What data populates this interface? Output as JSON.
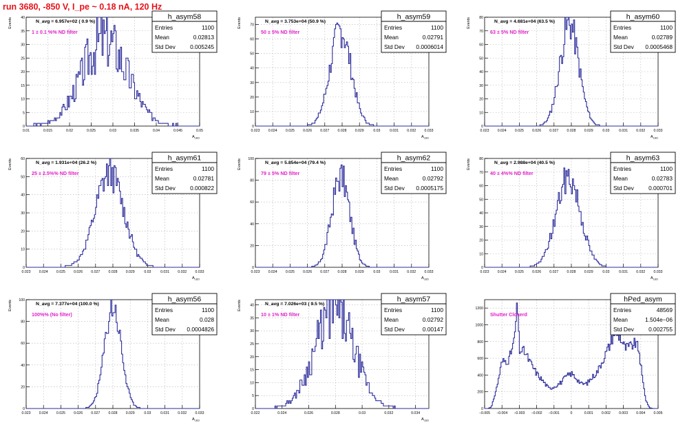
{
  "canvas_title": "run 3680,  -850 V, I_pe ~ 0.18 nA, 120 Hz",
  "colors": {
    "hist_line": "#2b2b9a",
    "annotation": "#e020c8",
    "title": "#e8121a",
    "grid": "#b0b0b0"
  },
  "stats_labels": {
    "entries": "Entries",
    "mean": "Mean",
    "std": "Std Dev"
  },
  "chart_data": [
    {
      "type": "histogram",
      "name": "h_asym58",
      "ylabel": "Events",
      "xlabel": "A",
      "xlabel_sub": "LED",
      "navg": "N_avg = 6.957e+02 ( 0.9 %)",
      "filter": "1 ± 0.1 %% ND filter",
      "entries": "1100",
      "mean": "0.02813",
      "std": "0.005245",
      "xlim": [
        0.01,
        0.05
      ],
      "ylim": [
        0,
        40
      ],
      "xticks": [
        0.01,
        0.015,
        0.02,
        0.025,
        0.03,
        0.035,
        0.04,
        0.045,
        0.05
      ],
      "xtick_labels": [
        "0.01",
        "0.015",
        "0.02",
        "0.025",
        "0.03",
        "0.035",
        "0.04",
        "0.045",
        "0.05"
      ],
      "yticks": [
        0,
        5,
        10,
        15,
        20,
        25,
        30,
        35,
        40
      ],
      "grid": true,
      "shape": {
        "mu": 0.02813,
        "sigma": 0.005245,
        "peak": 32,
        "bins": 160,
        "noise": 0.35,
        "seed": 3
      }
    },
    {
      "type": "histogram",
      "name": "h_asym59",
      "ylabel": "Events",
      "xlabel": "A",
      "xlabel_sub": "LED",
      "navg": "N_avg = 3.753e+04 (50.9 %)",
      "filter": "50 ± 5% ND filter",
      "entries": "1100",
      "mean": "0.02791",
      "std": "0.0006014",
      "xlim": [
        0.023,
        0.033
      ],
      "ylim": [
        0,
        75
      ],
      "xticks": [
        0.023,
        0.024,
        0.025,
        0.026,
        0.027,
        0.028,
        0.029,
        0.03,
        0.031,
        0.032,
        0.033
      ],
      "xtick_labels": [
        "0.023",
        "0.024",
        "0.025",
        "0.026",
        "0.027",
        "0.028",
        "0.029",
        "0.03",
        "0.031",
        "0.032",
        "0.033"
      ],
      "yticks": [
        0,
        10,
        20,
        30,
        40,
        50,
        60,
        70
      ],
      "grid": true,
      "shape": {
        "mu": 0.02791,
        "sigma": 0.0006014,
        "peak": 66,
        "bins": 160,
        "noise": 0.18,
        "seed": 7
      }
    },
    {
      "type": "histogram",
      "name": "h_asym60",
      "ylabel": "Events",
      "xlabel": "A",
      "xlabel_sub": "LED",
      "navg": "N_avg = 4.681e+04 (63.5 %)",
      "filter": "63 ± 5% ND filter",
      "entries": "1100",
      "mean": "0.02789",
      "std": "0.0005468",
      "xlim": [
        0.023,
        0.033
      ],
      "ylim": [
        0,
        80
      ],
      "xticks": [
        0.023,
        0.024,
        0.025,
        0.026,
        0.027,
        0.028,
        0.029,
        0.03,
        0.031,
        0.032,
        0.033
      ],
      "xtick_labels": [
        "0.023",
        "0.024",
        "0.025",
        "0.026",
        "0.027",
        "0.028",
        "0.029",
        "0.03",
        "0.031",
        "0.032",
        "0.033"
      ],
      "yticks": [
        0,
        10,
        20,
        30,
        40,
        50,
        60,
        70,
        80
      ],
      "grid": true,
      "shape": {
        "mu": 0.02789,
        "sigma": 0.0005468,
        "peak": 75,
        "bins": 160,
        "noise": 0.18,
        "seed": 11
      }
    },
    {
      "type": "histogram",
      "name": "h_asym61",
      "ylabel": "Events",
      "xlabel": "A",
      "xlabel_sub": "LED",
      "navg": "N_avg = 1.931e+04 (26.2 %)",
      "filter": "25 ± 2.5%% ND filter",
      "entries": "1100",
      "mean": "0.02781",
      "std": "0.000822",
      "xlim": [
        0.023,
        0.033
      ],
      "ylim": [
        0,
        60
      ],
      "xticks": [
        0.023,
        0.024,
        0.025,
        0.026,
        0.027,
        0.028,
        0.029,
        0.03,
        0.031,
        0.032,
        0.033
      ],
      "xtick_labels": [
        "0.023",
        "0.024",
        "0.025",
        "0.026",
        "0.027",
        "0.028",
        "0.029",
        "0.03",
        "0.031",
        "0.032",
        "0.033"
      ],
      "yticks": [
        0,
        10,
        20,
        30,
        40,
        50,
        60
      ],
      "grid": true,
      "shape": {
        "mu": 0.02781,
        "sigma": 0.000822,
        "peak": 52,
        "bins": 160,
        "noise": 0.18,
        "seed": 13
      }
    },
    {
      "type": "histogram",
      "name": "h_asym62",
      "ylabel": "Events",
      "xlabel": "A",
      "xlabel_sub": "LED",
      "navg": "N_avg = 5.854e+04 (79.4 %)",
      "filter": "79 ± 5% ND filter",
      "entries": "1100",
      "mean": "0.02792",
      "std": "0.0005175",
      "xlim": [
        0.023,
        0.033
      ],
      "ylim": [
        0,
        100
      ],
      "xticks": [
        0.023,
        0.024,
        0.025,
        0.026,
        0.027,
        0.028,
        0.029,
        0.03,
        0.031,
        0.032,
        0.033
      ],
      "xtick_labels": [
        "0.023",
        "0.024",
        "0.025",
        "0.026",
        "0.027",
        "0.028",
        "0.029",
        "0.03",
        "0.031",
        "0.032",
        "0.033"
      ],
      "yticks": [
        0,
        20,
        40,
        60,
        80,
        100
      ],
      "grid": true,
      "shape": {
        "mu": 0.02792,
        "sigma": 0.0005175,
        "peak": 84,
        "bins": 160,
        "noise": 0.18,
        "seed": 17
      }
    },
    {
      "type": "histogram",
      "name": "h_asym63",
      "ylabel": "Events",
      "xlabel": "A",
      "xlabel_sub": "LED",
      "navg": "N_avg = 2.988e+04 (40.5 %)",
      "filter": "40 ± 4%% ND filter",
      "entries": "1100",
      "mean": "0.02783",
      "std": "0.000701",
      "xlim": [
        0.023,
        0.033
      ],
      "ylim": [
        0,
        80
      ],
      "xticks": [
        0.023,
        0.024,
        0.025,
        0.026,
        0.027,
        0.028,
        0.029,
        0.03,
        0.031,
        0.032,
        0.033
      ],
      "xtick_labels": [
        "0.023",
        "0.024",
        "0.025",
        "0.026",
        "0.027",
        "0.028",
        "0.029",
        "0.03",
        "0.031",
        "0.032",
        "0.033"
      ],
      "yticks": [
        0,
        10,
        20,
        30,
        40,
        50,
        60,
        70,
        80
      ],
      "grid": true,
      "shape": {
        "mu": 0.02783,
        "sigma": 0.000701,
        "peak": 66,
        "bins": 160,
        "noise": 0.18,
        "seed": 19
      }
    },
    {
      "type": "histogram",
      "name": "h_asym56",
      "ylabel": "Events",
      "xlabel": "A",
      "xlabel_sub": "LED",
      "navg": "N_avg = 7.377e+04 (100.0 %)",
      "filter": "100%% (No filter)",
      "entries": "1100",
      "mean": "0.028",
      "std": "0.0004826",
      "xlim": [
        0.023,
        0.033
      ],
      "ylim": [
        0,
        100
      ],
      "xticks": [
        0.023,
        0.024,
        0.025,
        0.026,
        0.027,
        0.028,
        0.029,
        0.03,
        0.031,
        0.032,
        0.033
      ],
      "xtick_labels": [
        "0.023",
        "0.024",
        "0.025",
        "0.026",
        "0.027",
        "0.028",
        "0.029",
        "0.03",
        "0.031",
        "0.032",
        "0.033"
      ],
      "yticks": [
        0,
        20,
        40,
        60,
        80,
        100
      ],
      "grid": true,
      "shape": {
        "mu": 0.028,
        "sigma": 0.0004826,
        "peak": 93,
        "bins": 160,
        "noise": 0.15,
        "seed": 23
      }
    },
    {
      "type": "histogram",
      "name": "h_asym57",
      "ylabel": "Events",
      "xlabel": "A",
      "xlabel_sub": "LED",
      "navg": "N_avg = 7.026e+03 ( 9.5 %)",
      "filter": "10 ± 1% ND filter",
      "entries": "1100",
      "mean": "0.02792",
      "std": "0.00147",
      "xlim": [
        0.022,
        0.035
      ],
      "ylim": [
        0,
        42
      ],
      "xticks": [
        0.022,
        0.024,
        0.026,
        0.028,
        0.03,
        0.032,
        0.034
      ],
      "xtick_labels": [
        "0.022",
        "0.024",
        "0.026",
        "0.028",
        "0.03",
        "0.032",
        "0.034"
      ],
      "yticks": [
        0,
        5,
        10,
        15,
        20,
        25,
        30,
        35,
        40
      ],
      "grid": true,
      "shape": {
        "mu": 0.02792,
        "sigma": 0.00147,
        "peak": 38,
        "bins": 160,
        "noise": 0.3,
        "seed": 29
      }
    },
    {
      "type": "histogram",
      "name": "hPed_asym",
      "ylabel": "",
      "xlabel": "",
      "xlabel_sub": "",
      "navg": "",
      "filter": "Shutter Closerd",
      "entries": "48569",
      "mean": "1.504e−06",
      "std": "0.002755",
      "xlim": [
        -0.005,
        0.005
      ],
      "ylim": [
        0,
        1300
      ],
      "xticks": [
        -0.005,
        -0.004,
        -0.003,
        -0.002,
        -0.001,
        0,
        0.001,
        0.002,
        0.003,
        0.004,
        0.005
      ],
      "xtick_labels": [
        "−0.005",
        "−0.004",
        "−0.003",
        "−0.002",
        "−0.001",
        "0",
        "0.001",
        "0.002",
        "0.003",
        "0.004",
        "0.005"
      ],
      "yticks": [
        0,
        200,
        400,
        600,
        800,
        1000,
        1200
      ],
      "grid": true,
      "ped_shape": {
        "bins": 180,
        "seed": 31,
        "knots": [
          [
            -0.0048,
            0
          ],
          [
            -0.0046,
            20
          ],
          [
            -0.0043,
            250
          ],
          [
            -0.004,
            560
          ],
          [
            -0.0036,
            580
          ],
          [
            -0.0033,
            800
          ],
          [
            -0.0031,
            1250
          ],
          [
            -0.003,
            700
          ],
          [
            -0.0027,
            680
          ],
          [
            -0.0024,
            560
          ],
          [
            -0.002,
            420
          ],
          [
            -0.0016,
            320
          ],
          [
            -0.0013,
            240
          ],
          [
            -0.001,
            260
          ],
          [
            -0.0006,
            310
          ],
          [
            -0.0003,
            380
          ],
          [
            0,
            420
          ],
          [
            0.0003,
            360
          ],
          [
            0.0006,
            290
          ],
          [
            0.0009,
            300
          ],
          [
            0.0012,
            370
          ],
          [
            0.0015,
            440
          ],
          [
            0.0019,
            620
          ],
          [
            0.0022,
            750
          ],
          [
            0.0025,
            930
          ],
          [
            0.0028,
            860
          ],
          [
            0.0031,
            720
          ],
          [
            0.0034,
            740
          ],
          [
            0.0037,
            780
          ],
          [
            0.0039,
            700
          ],
          [
            0.0041,
            350
          ],
          [
            0.0043,
            100
          ],
          [
            0.0045,
            10
          ],
          [
            0.0047,
            0
          ]
        ]
      }
    }
  ]
}
